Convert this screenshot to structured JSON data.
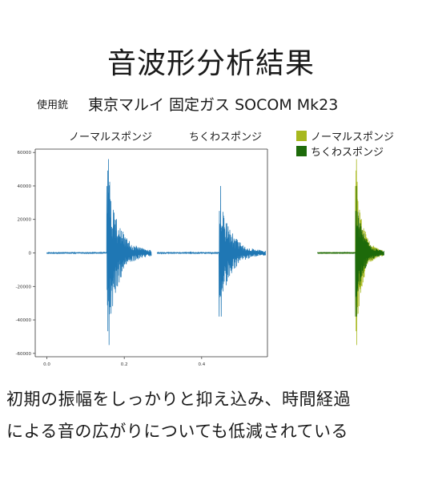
{
  "title": "音波形分析結果",
  "subtitle": {
    "label": "使用銃",
    "gun": "東京マルイ 固定ガス SOCOM Mk23"
  },
  "panel_titles": [
    "ノーマルスポンジ",
    "ちくわスポンジ"
  ],
  "legend": [
    "ノーマルスポンジ",
    "ちくわスポンジ"
  ],
  "caption": [
    "初期の振幅をしっかりと抑え込み、時間経過",
    "による音の広がりについても低減されている"
  ],
  "colors": {
    "waveform": "#1f77b4",
    "normal": "#a7b81e",
    "chikuwa": "#1d6a0a"
  },
  "chart_data": {
    "type": "line",
    "title": "",
    "xlabel": "",
    "ylabel": "",
    "ylim": [
      -62000,
      62000
    ],
    "yticks": [
      -60000,
      -40000,
      -20000,
      0,
      20000,
      40000,
      60000
    ],
    "xlim": [
      -0.03,
      0.57
    ],
    "xticks": [
      0.0,
      0.2,
      0.4
    ],
    "series": [
      {
        "name": "ノーマルスポンジ",
        "x_range": [
          0.0,
          0.27
        ],
        "onset": 0.155,
        "peak_positive": 56000,
        "peak_negative": -55000,
        "pre_onset_amplitude": 500,
        "decay_end": 0.27
      },
      {
        "name": "ちくわスポンジ",
        "x_range": [
          0.285,
          0.565
        ],
        "onset": 0.445,
        "peak_positive": 40000,
        "peak_negative": -38000,
        "pre_onset_amplitude": 500,
        "decay_end": 0.565
      }
    ],
    "overlay": {
      "series": [
        "ノーマルスポンジ",
        "ちくわスポンジ"
      ],
      "legend_position": "top-right"
    }
  }
}
